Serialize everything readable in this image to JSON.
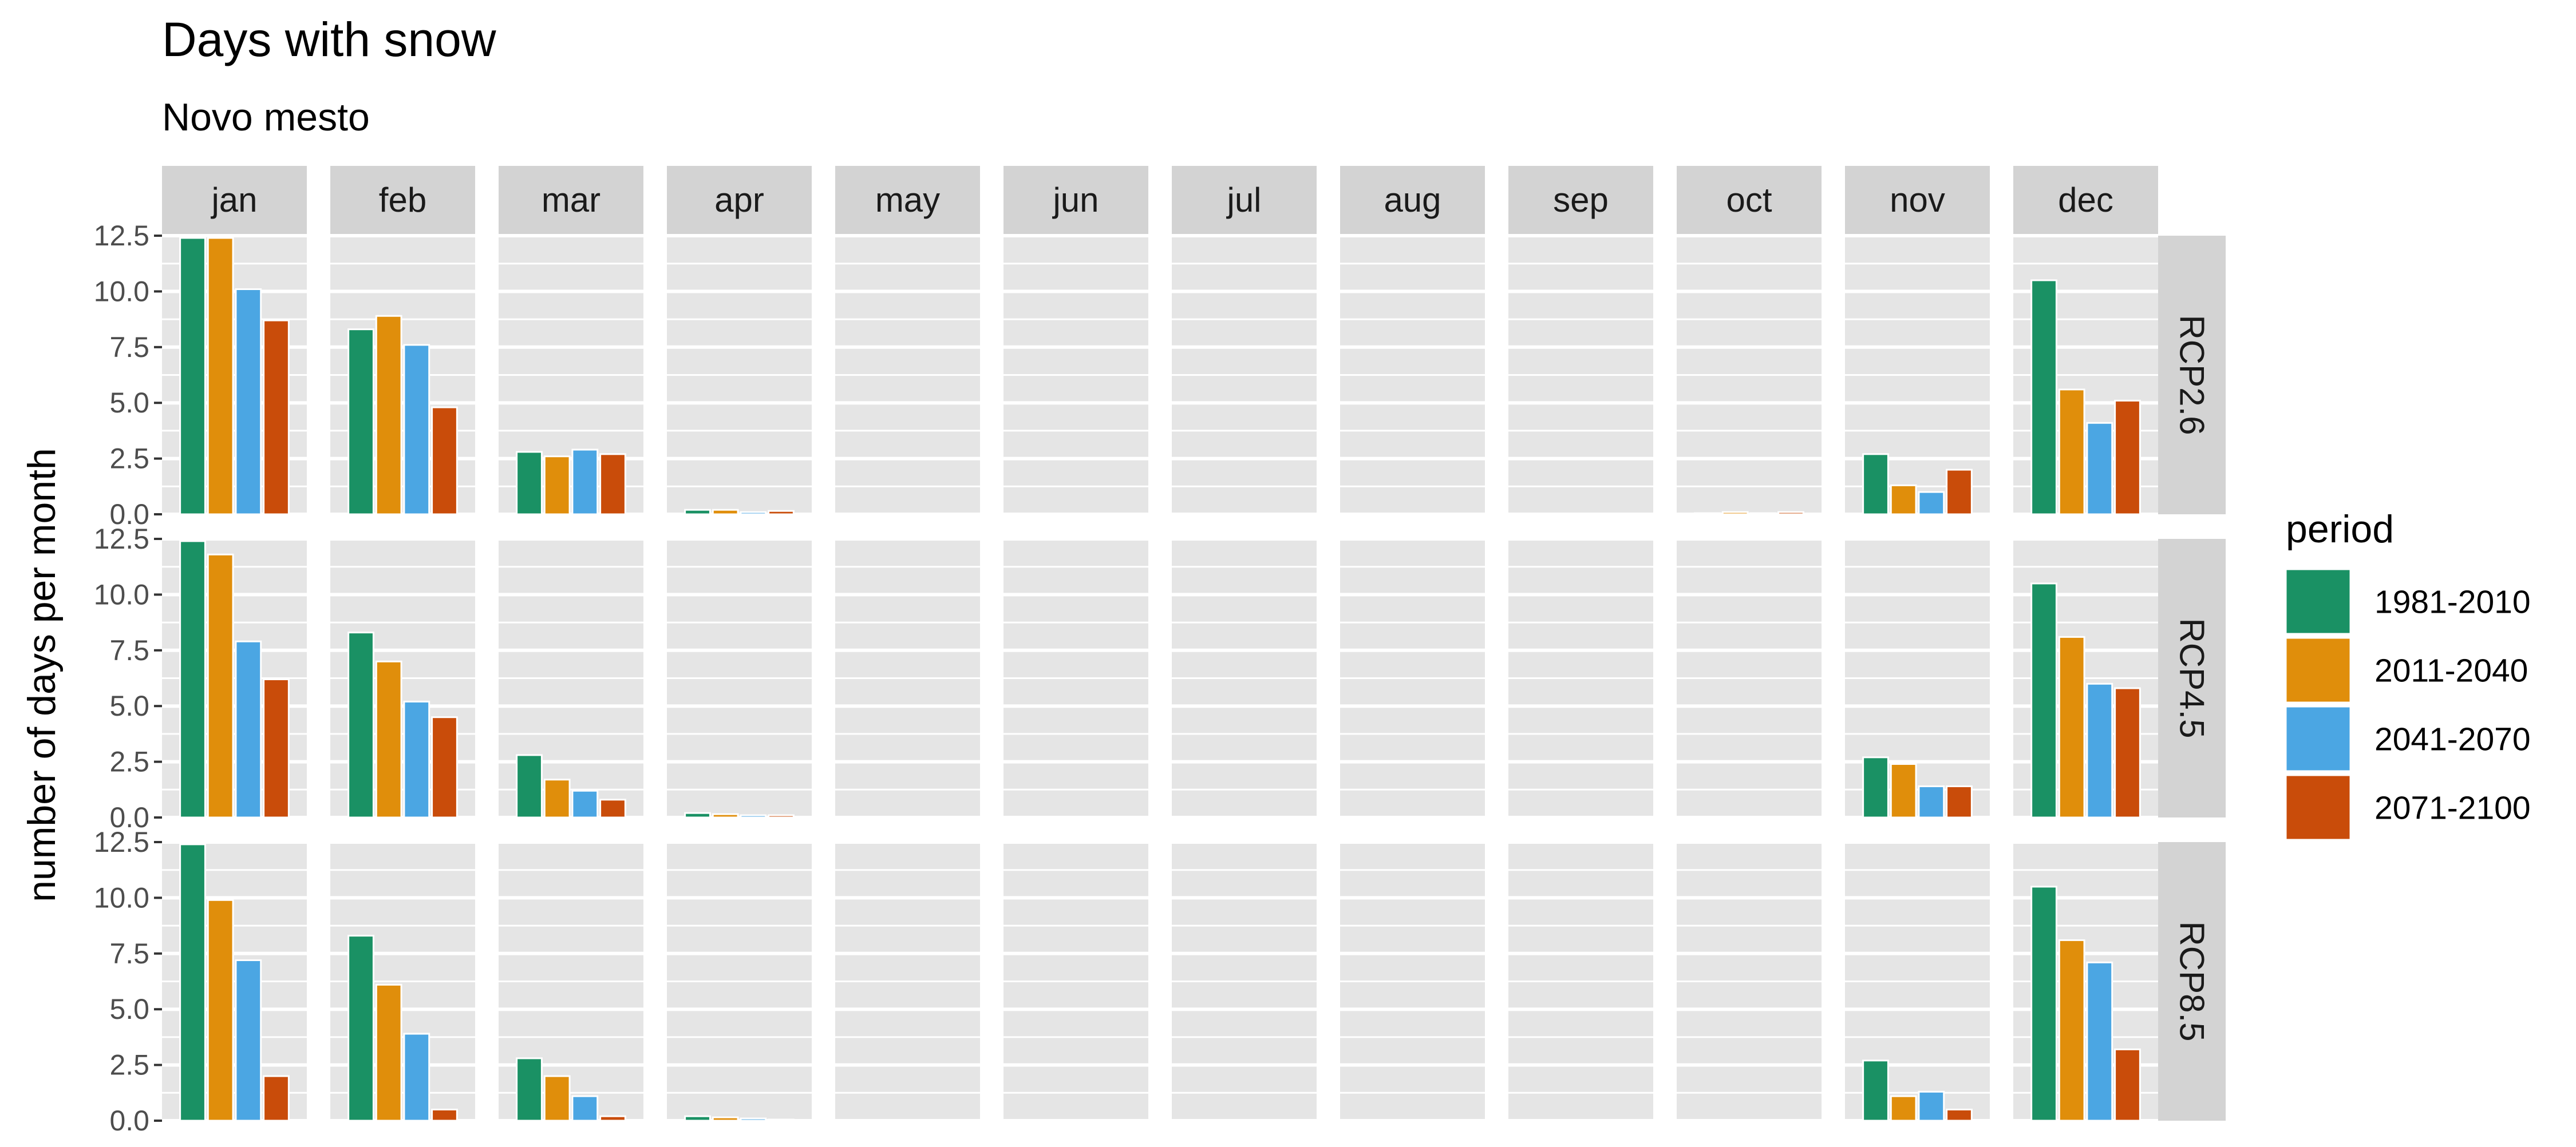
{
  "chart_data": {
    "type": "bar",
    "title": "Days with snow",
    "subtitle": "Novo mesto",
    "ylabel": "number of days per month",
    "xlabel": "",
    "ylim": [
      0,
      12.5
    ],
    "yticks": [
      "0.0",
      "2.5",
      "5.0",
      "7.5",
      "10.0",
      "12.5"
    ],
    "ytick_values": [
      0,
      2.5,
      5,
      7.5,
      10,
      12.5
    ],
    "months": [
      "jan",
      "feb",
      "mar",
      "apr",
      "may",
      "jun",
      "jul",
      "aug",
      "sep",
      "oct",
      "nov",
      "dec"
    ],
    "scenarios": [
      "RCP2.6",
      "RCP4.5",
      "RCP8.5"
    ],
    "legend": {
      "title": "period",
      "position": "right",
      "periods": [
        "1981-2010",
        "2011-2040",
        "2041-2070",
        "2071-2100"
      ],
      "colors": [
        "#1a9164",
        "#e08e0b",
        "#4ba6e3",
        "#c94c0a"
      ]
    },
    "panel_background": "#e5e5e5",
    "strip_background": "#d3d3d3",
    "grid": true,
    "series": [
      {
        "scenario": "RCP2.6",
        "values": [
          [
            12.4,
            12.4,
            10.1,
            8.7
          ],
          [
            8.3,
            8.9,
            7.6,
            4.8
          ],
          [
            2.8,
            2.6,
            2.9,
            2.7
          ],
          [
            0.2,
            0.2,
            0.1,
            0.15
          ],
          [
            0,
            0,
            0,
            0
          ],
          [
            0,
            0,
            0,
            0
          ],
          [
            0,
            0,
            0,
            0
          ],
          [
            0,
            0,
            0,
            0
          ],
          [
            0,
            0,
            0,
            0
          ],
          [
            0.05,
            0.1,
            0.05,
            0.1
          ],
          [
            2.7,
            1.3,
            1.0,
            2.0
          ],
          [
            10.5,
            5.6,
            4.1,
            5.1
          ]
        ]
      },
      {
        "scenario": "RCP4.5",
        "values": [
          [
            12.4,
            11.8,
            7.9,
            6.2
          ],
          [
            8.3,
            7.0,
            5.2,
            4.5
          ],
          [
            2.8,
            1.7,
            1.2,
            0.8
          ],
          [
            0.2,
            0.15,
            0.1,
            0.1
          ],
          [
            0,
            0,
            0,
            0
          ],
          [
            0,
            0,
            0,
            0
          ],
          [
            0,
            0,
            0,
            0
          ],
          [
            0,
            0,
            0,
            0
          ],
          [
            0,
            0,
            0,
            0
          ],
          [
            0.02,
            0.02,
            0.02,
            0.02
          ],
          [
            2.7,
            2.4,
            1.4,
            1.4
          ],
          [
            10.5,
            8.1,
            6.0,
            5.8
          ]
        ]
      },
      {
        "scenario": "RCP8.5",
        "values": [
          [
            12.4,
            9.9,
            7.2,
            2.0
          ],
          [
            8.3,
            6.1,
            3.9,
            0.5
          ],
          [
            2.8,
            2.0,
            1.1,
            0.2
          ],
          [
            0.2,
            0.15,
            0.1,
            0.05
          ],
          [
            0,
            0,
            0,
            0
          ],
          [
            0,
            0,
            0,
            0
          ],
          [
            0,
            0,
            0,
            0
          ],
          [
            0,
            0,
            0,
            0
          ],
          [
            0,
            0,
            0,
            0
          ],
          [
            0,
            0,
            0,
            0
          ],
          [
            2.7,
            1.1,
            1.3,
            0.5
          ],
          [
            10.5,
            8.1,
            7.1,
            3.2
          ]
        ]
      }
    ]
  }
}
